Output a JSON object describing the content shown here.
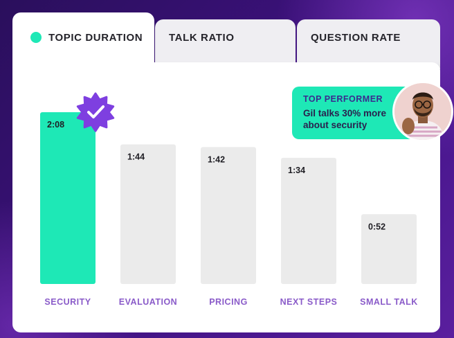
{
  "tabs": [
    {
      "label": "TOPIC DURATION",
      "active": true
    },
    {
      "label": "TALK RATIO",
      "active": false
    },
    {
      "label": "QUESTION RATE",
      "active": false
    }
  ],
  "callout": {
    "title": "TOP PERFORMER",
    "text": "Gil talks 30% more about security"
  },
  "colors": {
    "accent": "#1ee8b6",
    "bar_default": "#ebebeb",
    "label": "#8a5bc9",
    "badge": "#7e3fe0"
  },
  "chart_data": {
    "type": "bar",
    "categories": [
      "SECURITY",
      "EVALUATION",
      "PRICING",
      "NEXT STEPS",
      "SMALL TALK"
    ],
    "values": [
      128,
      104,
      102,
      94,
      52
    ],
    "value_labels": [
      "2:08",
      "1:44",
      "1:42",
      "1:34",
      "0:52"
    ],
    "unit": "seconds",
    "highlight_index": 0,
    "title": "",
    "xlabel": "",
    "ylabel": "",
    "ylim": [
      0,
      128
    ]
  },
  "icons": {
    "badge": "verified-check-badge-icon",
    "avatar": "user-avatar"
  }
}
